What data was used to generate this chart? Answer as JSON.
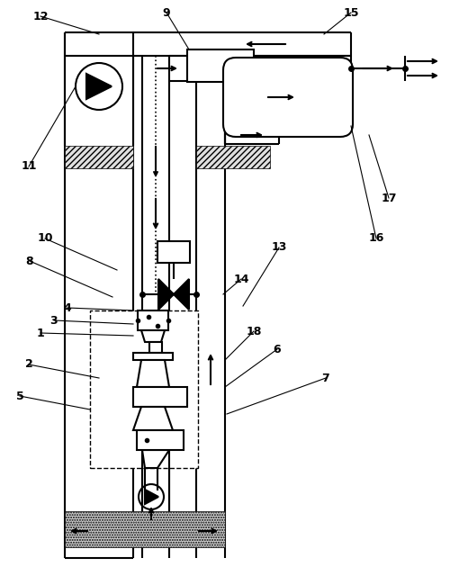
{
  "bg": "#ffffff",
  "lc": "#000000",
  "lw": 1.5,
  "lw_thin": 0.8,
  "fig_w": 5.0,
  "fig_h": 6.4,
  "labels": [
    [
      "12",
      55,
      14
    ],
    [
      "9",
      185,
      14
    ],
    [
      "15",
      390,
      14
    ],
    [
      "11",
      38,
      185
    ],
    [
      "10",
      55,
      260
    ],
    [
      "8",
      38,
      285
    ],
    [
      "4",
      80,
      342
    ],
    [
      "3",
      68,
      355
    ],
    [
      "1",
      55,
      368
    ],
    [
      "2",
      42,
      400
    ],
    [
      "5",
      30,
      430
    ],
    [
      "13",
      305,
      270
    ],
    [
      "14",
      265,
      305
    ],
    [
      "6",
      305,
      385
    ],
    [
      "7",
      360,
      415
    ],
    [
      "18",
      280,
      360
    ],
    [
      "16",
      415,
      260
    ],
    [
      "17",
      430,
      215
    ]
  ]
}
